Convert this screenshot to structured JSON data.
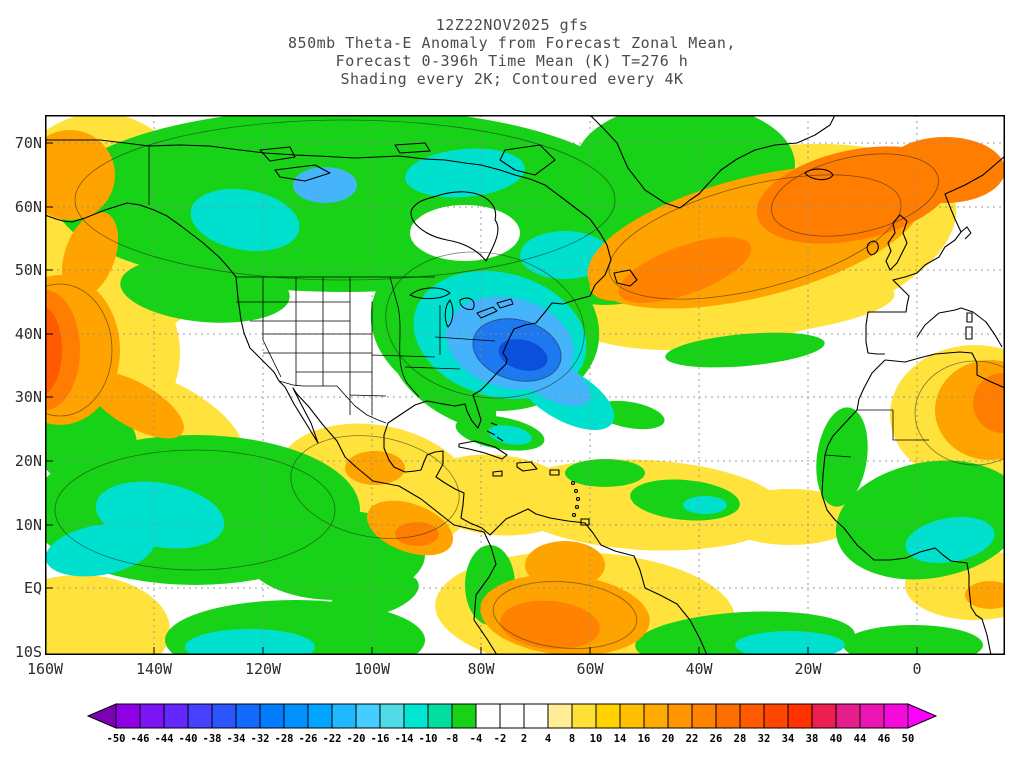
{
  "title": {
    "line1": "12Z22NOV2025 gfs",
    "line2": "850mb Theta-E Anomaly from Forecast Zonal Mean,",
    "line3": "Forecast 0-396h Time Mean (K) T=276 h",
    "line4": "Shading every 2K; Contoured every 4K"
  },
  "map": {
    "lat_labels": [
      "70N",
      "60N",
      "50N",
      "40N",
      "30N",
      "20N",
      "10N",
      "EQ",
      "10S"
    ],
    "lon_labels": [
      "160W",
      "140W",
      "120W",
      "100W",
      "80W",
      "60W",
      "40W",
      "20W",
      "0"
    ]
  },
  "colorbar": {
    "unit": "K",
    "labels": [
      "-50",
      "-46",
      "-44",
      "-40",
      "-38",
      "-34",
      "-32",
      "-28",
      "-26",
      "-22",
      "-20",
      "-16",
      "-14",
      "-10",
      "-8",
      "-4",
      "-2",
      "2",
      "4",
      "8",
      "10",
      "14",
      "16",
      "20",
      "22",
      "26",
      "28",
      "32",
      "34",
      "38",
      "40",
      "44",
      "46",
      "50"
    ],
    "colors": [
      "#7d00b4",
      "#8f00e6",
      "#7d14f5",
      "#6428ff",
      "#4641ff",
      "#2d55ff",
      "#1469ff",
      "#007dff",
      "#0091ff",
      "#00a5ff",
      "#1eb9ff",
      "#46cdff",
      "#50dce6",
      "#00e6d2",
      "#00dfa0",
      "#17d217",
      "#ffffff",
      "#ffffff",
      "#ffffff",
      "#ffee96",
      "#ffe136",
      "#ffd200",
      "#ffbe00",
      "#ffaa00",
      "#ff9600",
      "#ff8200",
      "#ff6e00",
      "#ff5a00",
      "#ff4600",
      "#ff3200",
      "#ef1e50",
      "#e61e8c",
      "#eb14b4",
      "#f50adc",
      "#ff00ff"
    ]
  }
}
